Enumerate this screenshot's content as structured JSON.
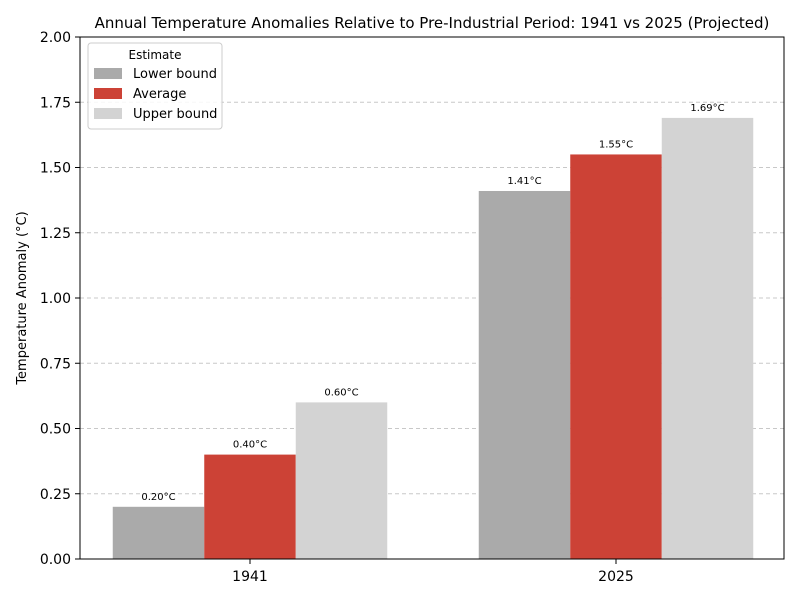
{
  "chart_data": {
    "type": "bar",
    "title": "Annual Temperature Anomalies Relative to Pre-Industrial Period: 1941 vs 2025 (Projected)",
    "xlabel": "",
    "ylabel": "Temperature Anomaly (°C)",
    "categories": [
      "1941",
      "2025"
    ],
    "ylim": [
      0,
      2.0
    ],
    "yticks": [
      "0.00",
      "0.25",
      "0.50",
      "0.75",
      "1.00",
      "1.25",
      "1.50",
      "1.75",
      "2.00"
    ],
    "ytick_values": [
      0,
      0.25,
      0.5,
      0.75,
      1.0,
      1.25,
      1.5,
      1.75,
      2.0
    ],
    "grid": "y-dashed",
    "legend": {
      "title": "Estimate",
      "placement": "top-left"
    },
    "series": [
      {
        "name": "Lower bound",
        "color": "#aaaaaa",
        "values": [
          0.2,
          1.41
        ],
        "labels": [
          "0.20°C",
          "1.41°C"
        ]
      },
      {
        "name": "Average",
        "color": "#cc4236",
        "values": [
          0.4,
          1.55
        ],
        "labels": [
          "0.40°C",
          "1.55°C"
        ]
      },
      {
        "name": "Upper bound",
        "color": "#d3d3d3",
        "values": [
          0.6,
          1.69
        ],
        "labels": [
          "0.60°C",
          "1.69°C"
        ]
      }
    ]
  }
}
